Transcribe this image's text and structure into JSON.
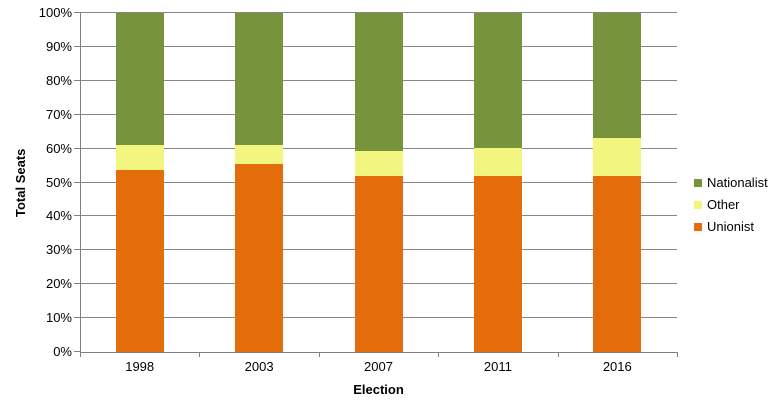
{
  "chart_data": {
    "type": "bar",
    "stacked": true,
    "percent_stacked": true,
    "title": "",
    "xlabel": "Election",
    "ylabel": "Total Seats",
    "categories": [
      "1998",
      "2003",
      "2007",
      "2011",
      "2016"
    ],
    "series": [
      {
        "name": "Unionist",
        "color": "#E46C0A",
        "values": [
          53.7,
          55.6,
          51.9,
          51.9,
          51.9
        ]
      },
      {
        "name": "Other",
        "color": "#F3F67E",
        "values": [
          7.4,
          5.5,
          7.4,
          8.3,
          11.1
        ]
      },
      {
        "name": "Nationalist",
        "color": "#77933C",
        "values": [
          38.9,
          38.9,
          40.7,
          39.8,
          37.0
        ]
      }
    ],
    "ylim": [
      0,
      100
    ],
    "ytick_step": 10,
    "ytick_labels": [
      "0%",
      "10%",
      "20%",
      "30%",
      "40%",
      "50%",
      "60%",
      "70%",
      "80%",
      "90%",
      "100%"
    ],
    "grid": "horizontal",
    "legend": {
      "position": "right",
      "entries": [
        "Nationalist",
        "Other",
        "Unionist"
      ]
    },
    "colors": {
      "gridline": "#878787",
      "axis": "#808080",
      "text": "#000000",
      "background": "#FFFFFF"
    }
  }
}
